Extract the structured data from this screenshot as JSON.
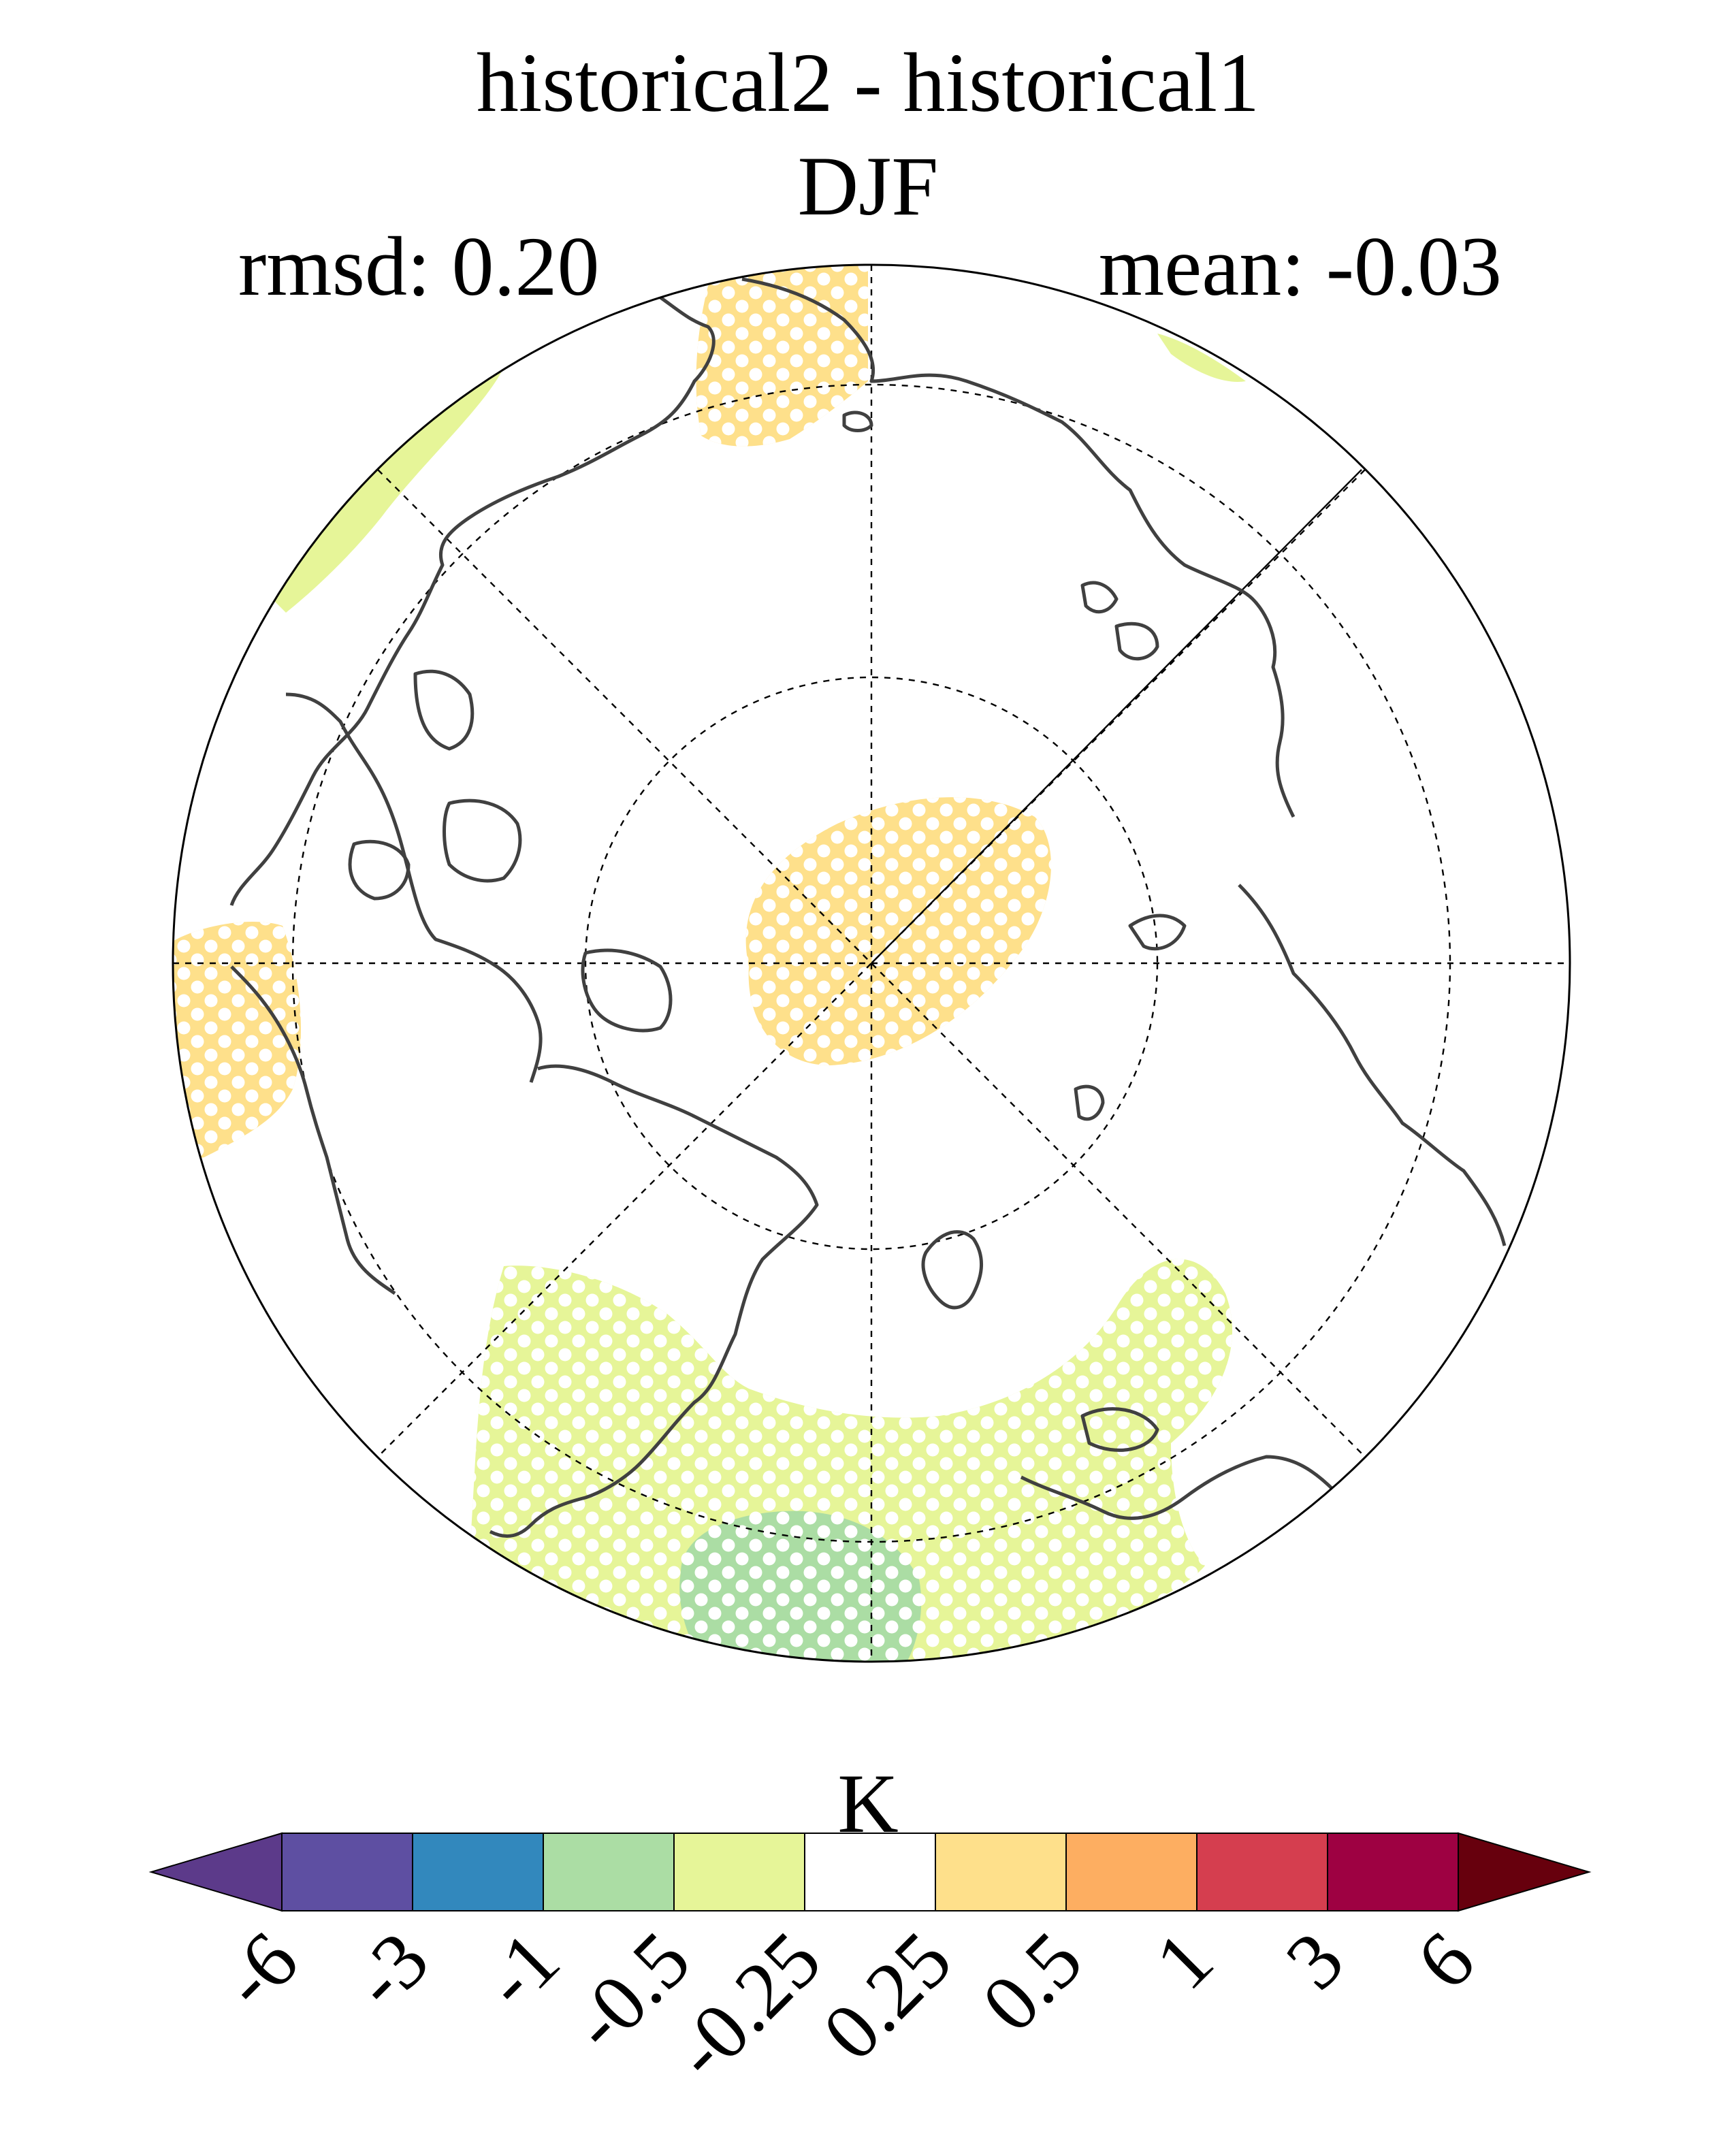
{
  "title": "historical2 - historical1",
  "season": "DJF",
  "stats": {
    "rmsd_label": "rmsd: 0.20",
    "mean_label": "mean: -0.03"
  },
  "colorbar": {
    "unit": "K",
    "tick_labels": [
      "-6",
      "-3",
      "-1",
      "-0.5",
      "-0.25",
      "0.25",
      "0.5",
      "1",
      "3",
      "6"
    ],
    "under_color": "#5c3a8a",
    "over_color": "#67000d",
    "colors": [
      "#5e4fa2",
      "#3288bd",
      "#abdda4",
      "#e6f598",
      "#ffffff",
      "#fee08b",
      "#fdae61",
      "#d53e4f",
      "#9e0142"
    ]
  },
  "map": {
    "projection": "north-polar-stereographic",
    "colors": {
      "coast": "#404040",
      "grid": "#000000",
      "stipple": "#ffffff"
    }
  }
}
